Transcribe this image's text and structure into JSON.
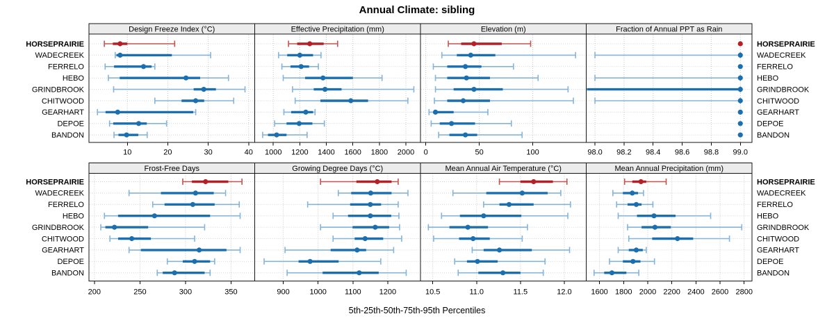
{
  "title": "Annual Climate: sibling",
  "footer": "5th-25th-50th-75th-95th Percentiles",
  "colors": {
    "series_main": "#1b6fae",
    "series_light": "#84b4da",
    "highlight_main": "#b42025",
    "highlight_light": "#c4534e",
    "header_bg": "#ececec",
    "border": "#141414",
    "grid": "#c8c8c8",
    "guide": "#d4d4d4"
  },
  "chart_data": {
    "type": "dot-interval-trellis",
    "percentiles": [
      "5th",
      "25th",
      "50th",
      "75th",
      "95th"
    ],
    "stations": [
      "HORSEPRAIRIE",
      "WADECREEK",
      "FERRELO",
      "HEBO",
      "GRINDBROOK",
      "CHITWOOD",
      "GEARHART",
      "DEPOE",
      "BANDON"
    ],
    "highlight_station": "HORSEPRAIRIE",
    "panels": [
      {
        "title": "Design Freeze Index (°C)",
        "row": 0,
        "ticks": [
          10,
          20,
          30,
          40
        ],
        "tick_labels": [
          "10",
          "20",
          "30",
          "40"
        ],
        "domain": [
          0.5,
          41.5
        ],
        "values": [
          [
            4.3,
            6.4,
            8.2,
            10.0,
            21.7
          ],
          [
            7.0,
            7.3,
            8.2,
            21.0,
            30.6
          ],
          [
            4.5,
            6.7,
            14.0,
            16.0,
            16.8
          ],
          [
            5.3,
            8.1,
            24.5,
            28.0,
            35.0
          ],
          [
            6.6,
            26.4,
            28.9,
            31.9,
            39.1
          ],
          [
            16.8,
            23.4,
            26.9,
            29.0,
            36.3
          ],
          [
            2.6,
            4.6,
            7.6,
            26.3,
            26.9
          ],
          [
            5.6,
            6.5,
            12.8,
            14.8,
            19.7
          ],
          [
            6.7,
            7.8,
            9.8,
            12.7,
            14.9
          ]
        ]
      },
      {
        "title": "Effective Precipitation (mm)",
        "row": 0,
        "ticks": [
          1000,
          1200,
          1400,
          1600,
          1800,
          2000
        ],
        "tick_labels": [
          "1000",
          "1200",
          "1400",
          "1600",
          "1800",
          "2000"
        ],
        "domain": [
          860,
          2110
        ],
        "values": [
          [
            1115,
            1180,
            1275,
            1380,
            1485
          ],
          [
            1040,
            1105,
            1200,
            1300,
            1360
          ],
          [
            1065,
            1130,
            1210,
            1270,
            1340
          ],
          [
            1075,
            1240,
            1375,
            1600,
            1820
          ],
          [
            1145,
            1305,
            1390,
            1515,
            2060
          ],
          [
            1165,
            1355,
            1585,
            1715,
            2015
          ],
          [
            1080,
            1135,
            1245,
            1300,
            1315
          ],
          [
            1010,
            1100,
            1195,
            1295,
            1385
          ],
          [
            920,
            960,
            1025,
            1100,
            1255
          ]
        ]
      },
      {
        "title": "Elevation (m)",
        "row": 0,
        "ticks": [
          0,
          50,
          100
        ],
        "tick_labels": [
          "0",
          "50",
          "100"
        ],
        "domain": [
          -5,
          150
        ],
        "values": [
          [
            21,
            33,
            45,
            71,
            98
          ],
          [
            15,
            29,
            42,
            65,
            140
          ],
          [
            7,
            20,
            37,
            52,
            82
          ],
          [
            9,
            20,
            38,
            60,
            105
          ],
          [
            9,
            26,
            45,
            72,
            133
          ],
          [
            8,
            20,
            35,
            60,
            138
          ],
          [
            3,
            7,
            9,
            26,
            58
          ],
          [
            5,
            13,
            24,
            46,
            80
          ],
          [
            12,
            22,
            37,
            48,
            90
          ]
        ]
      },
      {
        "title": "Fraction of Annual PPT as Rain",
        "row": 0,
        "ticks": [
          98.0,
          98.2,
          98.4,
          98.6,
          98.8,
          99.0
        ],
        "tick_labels": [
          "98.0",
          "98.2",
          "98.4",
          "98.6",
          "98.8",
          "99.0"
        ],
        "domain": [
          97.94,
          99.08
        ],
        "values": [
          [
            99,
            99,
            99,
            99,
            99
          ],
          [
            98,
            99,
            99,
            99,
            99
          ],
          [
            99,
            99,
            99,
            99,
            99
          ],
          [
            98,
            99,
            99,
            99,
            99
          ],
          [
            97.8,
            97.9,
            99,
            99,
            99
          ],
          [
            98,
            99,
            99,
            99,
            99
          ],
          [
            99,
            99,
            99,
            99,
            99
          ],
          [
            99,
            99,
            99,
            99,
            99
          ],
          [
            99,
            99,
            99,
            99,
            99
          ]
        ]
      },
      {
        "title": "Frost-Free Days",
        "row": 1,
        "ticks": [
          200,
          250,
          300,
          350
        ],
        "tick_labels": [
          "200",
          "250",
          "300",
          "350"
        ],
        "domain": [
          194,
          376
        ],
        "values": [
          [
            297,
            307,
            322,
            347,
            362
          ],
          [
            238,
            273,
            311,
            331,
            344
          ],
          [
            264,
            277,
            308,
            332,
            359
          ],
          [
            211,
            226,
            266,
            327,
            360
          ],
          [
            207,
            212,
            222,
            259,
            321
          ],
          [
            217,
            226,
            241,
            262,
            310
          ],
          [
            238,
            251,
            315,
            345,
            360
          ],
          [
            280,
            297,
            310,
            327,
            332
          ],
          [
            269,
            275,
            288,
            321,
            327
          ]
        ]
      },
      {
        "title": "Growing Degree Days (°C)",
        "row": 1,
        "ticks": [
          900,
          1000,
          1100,
          1200
        ],
        "tick_labels": [
          "900",
          "1000",
          "1100",
          "1200"
        ],
        "domain": [
          818,
          1294
        ],
        "values": [
          [
            1007,
            1110,
            1170,
            1211,
            1230
          ],
          [
            1058,
            1095,
            1151,
            1211,
            1258
          ],
          [
            970,
            1092,
            1150,
            1181,
            1230
          ],
          [
            1043,
            1086,
            1150,
            1210,
            1232
          ],
          [
            1007,
            1099,
            1164,
            1204,
            1234
          ],
          [
            1043,
            1105,
            1135,
            1187,
            1240
          ],
          [
            905,
            1036,
            1112,
            1138,
            1217
          ],
          [
            845,
            944,
            977,
            1059,
            1180
          ],
          [
            911,
            1013,
            1118,
            1174,
            1253
          ]
        ]
      },
      {
        "title": "Mean Annual Air Temperature (°C)",
        "row": 1,
        "ticks": [
          10.5,
          11.0,
          11.5,
          12.0
        ],
        "tick_labels": [
          "10.5",
          "11.0",
          "11.5",
          "12.0"
        ],
        "domain": [
          10.36,
          12.25
        ],
        "values": [
          [
            11.26,
            11.5,
            11.65,
            11.87,
            12.03
          ],
          [
            10.73,
            11.11,
            11.52,
            11.81,
            11.96
          ],
          [
            11.08,
            11.26,
            11.37,
            11.65,
            12.07
          ],
          [
            10.6,
            10.81,
            11.08,
            11.51,
            12.04
          ],
          [
            10.45,
            10.69,
            10.9,
            11.13,
            11.58
          ],
          [
            10.51,
            10.8,
            10.96,
            11.15,
            11.52
          ],
          [
            10.95,
            11.08,
            11.26,
            11.63,
            12.06
          ],
          [
            10.75,
            10.89,
            11.01,
            11.24,
            11.78
          ],
          [
            10.79,
            11.02,
            11.3,
            11.5,
            11.76
          ]
        ]
      },
      {
        "title": "Mean Annual Precipitation (mm)",
        "row": 1,
        "ticks": [
          1600,
          1800,
          2000,
          2200,
          2400,
          2600,
          2800
        ],
        "tick_labels": [
          "1600",
          "1800",
          "2000",
          "2200",
          "2400",
          "2600",
          "2800"
        ],
        "domain": [
          1490,
          2865
        ],
        "values": [
          [
            1808,
            1872,
            1944,
            1988,
            2153
          ],
          [
            1711,
            1794,
            1872,
            1920,
            1965
          ],
          [
            1742,
            1833,
            1905,
            1949,
            2043
          ],
          [
            1755,
            1911,
            2052,
            2231,
            2522
          ],
          [
            1833,
            1949,
            2060,
            2192,
            2780
          ],
          [
            1843,
            2037,
            2247,
            2377,
            2678
          ],
          [
            1755,
            1843,
            1905,
            1959,
            1988
          ],
          [
            1683,
            1794,
            1878,
            1940,
            2056
          ],
          [
            1555,
            1639,
            1703,
            1823,
            1926
          ]
        ]
      }
    ]
  }
}
